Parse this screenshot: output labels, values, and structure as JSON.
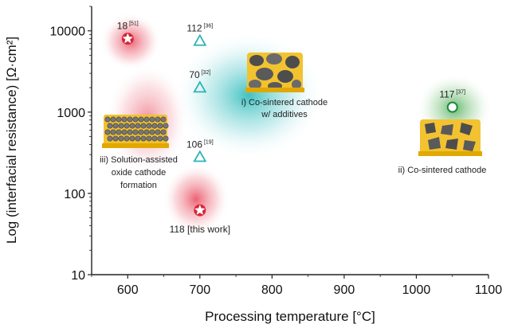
{
  "chart_data": {
    "type": "scatter",
    "xlabel": "Processing temperature [°C]",
    "ylabel": "Log (interfacial resistance) [Ω·cm²]",
    "xlim": [
      550,
      1100
    ],
    "ylim": [
      10,
      20000
    ],
    "yscale": "log",
    "xticks": [
      "600",
      "700",
      "800",
      "900",
      "1000",
      "1100"
    ],
    "yticks": [
      "10",
      "100",
      "1000",
      "10000"
    ],
    "points": [
      {
        "x": 600,
        "y": 8000,
        "marker": "star",
        "color": "#d62839",
        "label": "18",
        "ref": "[51]"
      },
      {
        "x": 700,
        "y": 7500,
        "marker": "triangle",
        "color": "#2bb3b8",
        "label": "112",
        "ref": "[36]"
      },
      {
        "x": 700,
        "y": 2000,
        "marker": "triangle",
        "color": "#2bb3b8",
        "label": "70",
        "ref": "[32]"
      },
      {
        "x": 700,
        "y": 280,
        "marker": "triangle",
        "color": "#2bb3b8",
        "label": "106",
        "ref": "[19]"
      },
      {
        "x": 700,
        "y": 62,
        "marker": "star",
        "color": "#d62839",
        "label": "118",
        "ref": "[this work]"
      },
      {
        "x": 1050,
        "y": 1150,
        "marker": "circle",
        "color": "#1e8a3a",
        "label": "117",
        "ref": "[37]"
      }
    ],
    "annotations": {
      "teal": [
        "i) Co-sintered cathode",
        "w/ additives"
      ],
      "green": [
        "ii) Co-sintered cathode"
      ],
      "red": [
        "iii) Solution-assisted",
        "oxide cathode",
        "formation"
      ]
    },
    "colors": {
      "red": "#d62839",
      "teal": "#2bb3b8",
      "green": "#1e8a3a",
      "particle_gold": "#f2c230",
      "particle_grey": "#555555"
    }
  }
}
